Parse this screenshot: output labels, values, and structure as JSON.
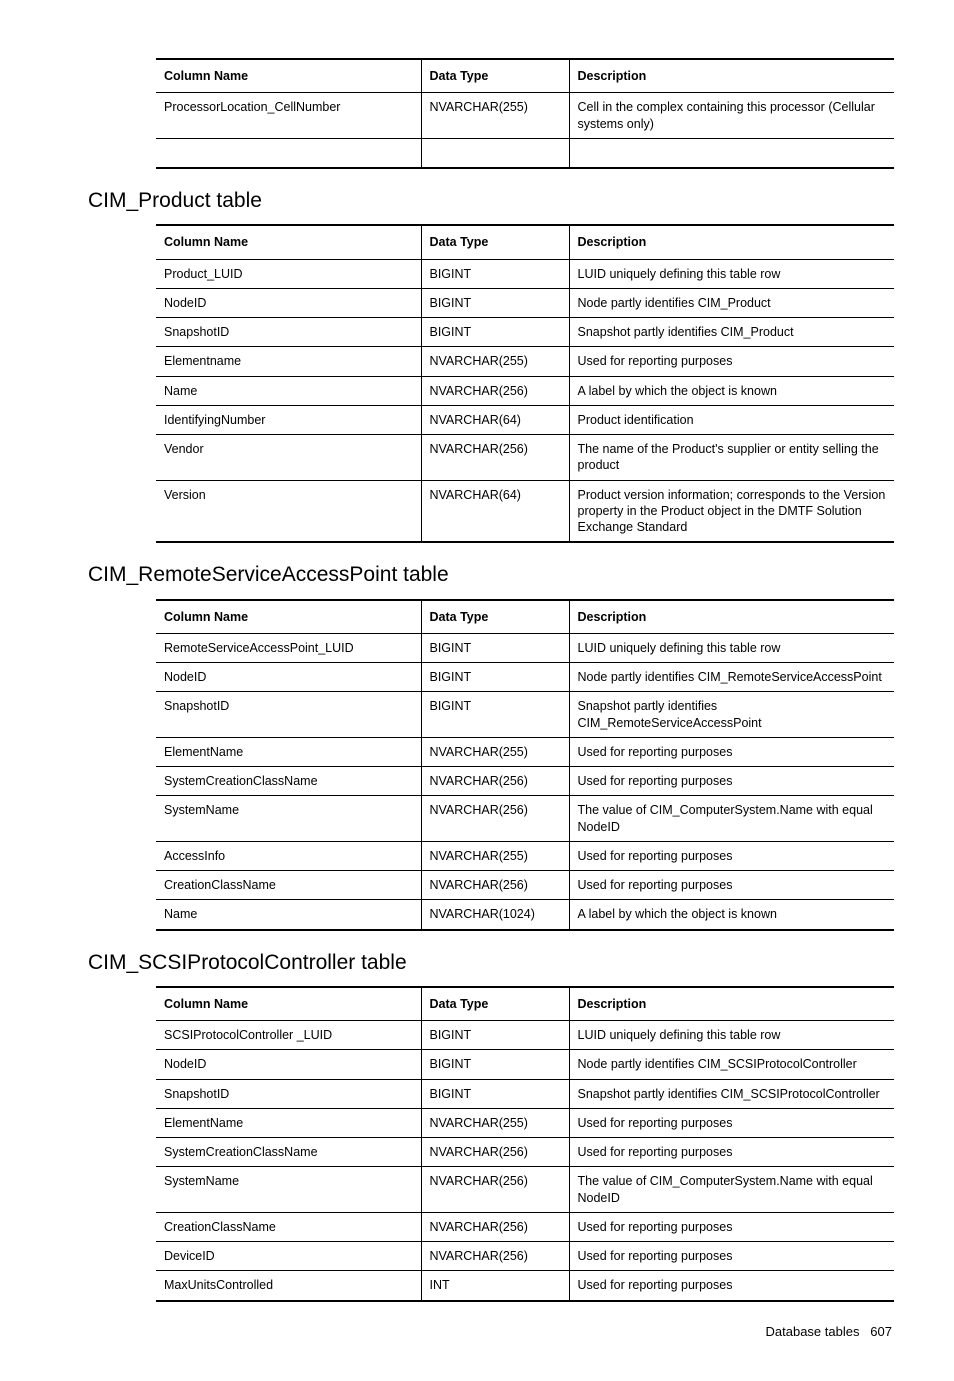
{
  "tables": [
    {
      "title": null,
      "headers": [
        "Column Name",
        "Data Type",
        "Description"
      ],
      "rows": [
        [
          "ProcessorLocation_CellNumber",
          "NVARCHAR(255)",
          "Cell in the complex containing this processor (Cellular systems only)"
        ],
        [
          "",
          "",
          ""
        ]
      ]
    },
    {
      "title": "CIM_Product table",
      "headers": [
        "Column Name",
        "Data Type",
        "Description"
      ],
      "rows": [
        [
          "Product_LUID",
          "BIGINT",
          "LUID uniquely defining this table row"
        ],
        [
          "NodeID",
          "BIGINT",
          "Node partly identifies CIM_Product"
        ],
        [
          "SnapshotID",
          "BIGINT",
          "Snapshot partly identifies CIM_Product"
        ],
        [
          "Elementname",
          "NVARCHAR(255)",
          "Used for reporting purposes"
        ],
        [
          "Name",
          "NVARCHAR(256)",
          "A label by which the object is known"
        ],
        [
          "IdentifyingNumber",
          "NVARCHAR(64)",
          "Product identification"
        ],
        [
          "Vendor",
          "NVARCHAR(256)",
          "The name of the Product's supplier or entity selling the product"
        ],
        [
          "Version",
          "NVARCHAR(64)",
          "Product version information; corresponds to the Version property in the Product object in the DMTF Solution Exchange Standard"
        ]
      ]
    },
    {
      "title": "CIM_RemoteServiceAccessPoint table",
      "headers": [
        "Column Name",
        "Data Type",
        "Description"
      ],
      "rows": [
        [
          "RemoteServiceAccessPoint_LUID",
          "BIGINT",
          "LUID uniquely defining this table row"
        ],
        [
          "NodeID",
          "BIGINT",
          "Node partly identifies CIM_RemoteServiceAccessPoint"
        ],
        [
          "SnapshotID",
          "BIGINT",
          "Snapshot partly identifies CIM_RemoteServiceAccessPoint"
        ],
        [
          "ElementName",
          "NVARCHAR(255)",
          "Used for reporting purposes"
        ],
        [
          "SystemCreationClassName",
          "NVARCHAR(256)",
          "Used for reporting purposes"
        ],
        [
          "SystemName",
          "NVARCHAR(256)",
          "The value of CIM_ComputerSystem.Name with equal NodeID"
        ],
        [
          "AccessInfo",
          "NVARCHAR(255)",
          "Used for reporting purposes"
        ],
        [
          "CreationClassName",
          "NVARCHAR(256)",
          "Used for reporting purposes"
        ],
        [
          "Name",
          "NVARCHAR(1024)",
          "A label by which the object is known"
        ]
      ]
    },
    {
      "title": "CIM_SCSIProtocolController table",
      "headers": [
        "Column Name",
        "Data Type",
        "Description"
      ],
      "rows": [
        [
          "SCSIProtocolController _LUID",
          "BIGINT",
          "LUID uniquely defining this table row"
        ],
        [
          "NodeID",
          "BIGINT",
          "Node partly identifies CIM_SCSIProtocolController"
        ],
        [
          "SnapshotID",
          "BIGINT",
          "Snapshot partly identifies CIM_SCSIProtocolController"
        ],
        [
          "ElementName",
          "NVARCHAR(255)",
          "Used for reporting purposes"
        ],
        [
          "SystemCreationClassName",
          "NVARCHAR(256)",
          "Used for reporting purposes"
        ],
        [
          "SystemName",
          "NVARCHAR(256)",
          "The value of CIM_ComputerSystem.Name with equal NodeID"
        ],
        [
          "CreationClassName",
          "NVARCHAR(256)",
          "Used for reporting purposes"
        ],
        [
          "DeviceID",
          "NVARCHAR(256)",
          "Used for reporting purposes"
        ],
        [
          "MaxUnitsControlled",
          "INT",
          "Used for reporting purposes"
        ]
      ]
    }
  ],
  "footer": {
    "label": "Database tables",
    "page": "607"
  }
}
